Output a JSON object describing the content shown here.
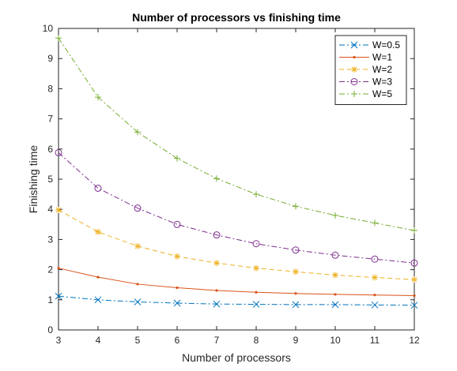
{
  "chart_data": {
    "type": "line",
    "title": "Number of processors vs finishing time",
    "xlabel": "Number of processors",
    "ylabel": "Finishing time",
    "x": [
      3,
      4,
      5,
      6,
      7,
      8,
      9,
      10,
      11,
      12
    ],
    "xlim": [
      3,
      12
    ],
    "ylim": [
      0,
      10
    ],
    "xticks": [
      3,
      4,
      5,
      6,
      7,
      8,
      9,
      10,
      11,
      12
    ],
    "yticks": [
      0,
      1,
      2,
      3,
      4,
      5,
      6,
      7,
      8,
      9,
      10
    ],
    "grid": false,
    "legend_position": "top-right",
    "series": [
      {
        "name": "W=0.5",
        "color": "#0072BD",
        "line": "dashdot",
        "marker": "x",
        "values": [
          1.12,
          1.0,
          0.93,
          0.89,
          0.86,
          0.85,
          0.84,
          0.84,
          0.83,
          0.82
        ]
      },
      {
        "name": "W=1",
        "color": "#D95319",
        "line": "solid",
        "marker": "dot",
        "values": [
          2.05,
          1.75,
          1.52,
          1.4,
          1.31,
          1.25,
          1.21,
          1.18,
          1.16,
          1.14
        ]
      },
      {
        "name": "W=2",
        "color": "#EDB120",
        "line": "dashed",
        "marker": "asterisk",
        "values": [
          3.98,
          3.25,
          2.78,
          2.44,
          2.22,
          2.05,
          1.93,
          1.82,
          1.74,
          1.67
        ]
      },
      {
        "name": "W=3",
        "color": "#7E2F8E",
        "line": "dashdot",
        "marker": "circle",
        "values": [
          5.88,
          4.7,
          4.04,
          3.5,
          3.15,
          2.86,
          2.65,
          2.48,
          2.35,
          2.22
        ]
      },
      {
        "name": "W=5",
        "color": "#77AC30",
        "line": "dashdot",
        "marker": "plus",
        "values": [
          9.68,
          7.72,
          6.56,
          5.69,
          5.02,
          4.5,
          4.1,
          3.8,
          3.55,
          3.3
        ]
      }
    ]
  }
}
